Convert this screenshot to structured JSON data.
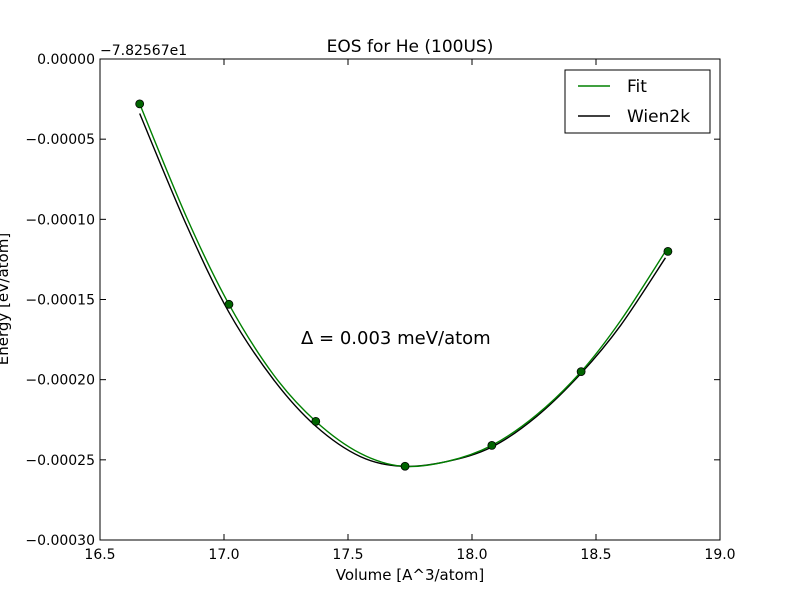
{
  "chart_data": {
    "type": "line",
    "title": "EOS for He (100US)",
    "xlabel": "Volume [A^3/atom]",
    "ylabel": "Energy [eV/atom]",
    "y_offset_label": "−7.82567e1",
    "xlim": [
      16.5,
      19.0
    ],
    "ylim": [
      -0.0003,
      0.0
    ],
    "x_ticks": [
      16.5,
      17.0,
      17.5,
      18.0,
      18.5,
      19.0
    ],
    "x_tick_labels": [
      "16.5",
      "17.0",
      "17.5",
      "18.0",
      "18.5",
      "19.0"
    ],
    "y_ticks": [
      0.0,
      -5e-05,
      -0.0001,
      -0.00015,
      -0.0002,
      -0.00025,
      -0.0003
    ],
    "y_tick_labels": [
      "0.00000",
      "−0.00005",
      "−0.00010",
      "−0.00015",
      "−0.00020",
      "−0.00025",
      "−0.00030"
    ],
    "annotation": "Δ = 0.003 meV/atom",
    "legend_position": "top-right",
    "grid": false,
    "series": [
      {
        "name": "Fit",
        "kind": "line",
        "color": "#008000",
        "points": [
          {
            "x": 16.66,
            "y": -2.8e-05
          },
          {
            "x": 16.85,
            "y": -9.9e-05
          },
          {
            "x": 17.02,
            "y": -0.000153
          },
          {
            "x": 17.2,
            "y": -0.000197
          },
          {
            "x": 17.37,
            "y": -0.000226
          },
          {
            "x": 17.55,
            "y": -0.000246
          },
          {
            "x": 17.72,
            "y": -0.000254
          },
          {
            "x": 17.9,
            "y": -0.000251
          },
          {
            "x": 18.08,
            "y": -0.000241
          },
          {
            "x": 18.26,
            "y": -0.000222
          },
          {
            "x": 18.44,
            "y": -0.000195
          },
          {
            "x": 18.6,
            "y": -0.000163
          },
          {
            "x": 18.78,
            "y": -0.00012
          }
        ]
      },
      {
        "name": "Wien2k",
        "kind": "line",
        "color": "#000000",
        "points": [
          {
            "x": 16.66,
            "y": -3.4e-05
          },
          {
            "x": 16.85,
            "y": -0.000104
          },
          {
            "x": 17.02,
            "y": -0.000158
          },
          {
            "x": 17.2,
            "y": -0.0002
          },
          {
            "x": 17.37,
            "y": -0.000229
          },
          {
            "x": 17.55,
            "y": -0.000248
          },
          {
            "x": 17.72,
            "y": -0.000254
          },
          {
            "x": 17.9,
            "y": -0.000251
          },
          {
            "x": 18.08,
            "y": -0.000242
          },
          {
            "x": 18.26,
            "y": -0.000223
          },
          {
            "x": 18.44,
            "y": -0.000196
          },
          {
            "x": 18.6,
            "y": -0.000166
          },
          {
            "x": 18.78,
            "y": -0.000124
          }
        ]
      },
      {
        "kind": "markers",
        "color": "#006400",
        "points": [
          {
            "x": 16.66,
            "y": -2.8e-05
          },
          {
            "x": 17.02,
            "y": -0.000153
          },
          {
            "x": 17.37,
            "y": -0.000226
          },
          {
            "x": 17.73,
            "y": -0.000254
          },
          {
            "x": 18.08,
            "y": -0.000241
          },
          {
            "x": 18.44,
            "y": -0.000195
          },
          {
            "x": 18.79,
            "y": -0.00012
          }
        ]
      }
    ]
  }
}
